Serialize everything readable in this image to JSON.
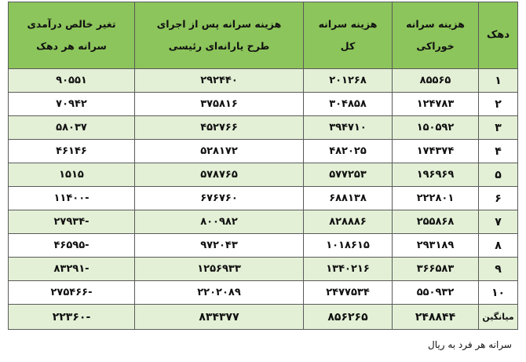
{
  "table": {
    "headers": {
      "dahak": "دهک",
      "food_per_capita": [
        "هزینه سرانه",
        "خوراکی"
      ],
      "total_per_capita": [
        "هزینه سرانه",
        "کل"
      ],
      "after_subsidy": [
        "هزینه سرانه پس از اجرای",
        "طرح یارانه‌ای رئیسی"
      ],
      "net_income_change": [
        "تغیر خالص درآمدی",
        "سرانه هر دهک"
      ]
    },
    "rows": [
      {
        "dahak": "۱",
        "food": "۸۵۵۶۵",
        "total": "۲۰۱۲۶۸",
        "after": "۲۹۲۴۴۰",
        "change": "۹۰۵۵۱"
      },
      {
        "dahak": "۲",
        "food": "۱۲۴۷۸۳",
        "total": "۳۰۴۸۵۸",
        "after": "۳۷۵۸۱۶",
        "change": "۷۰۹۴۲"
      },
      {
        "dahak": "۳",
        "food": "۱۵۰۵۹۲",
        "total": "۳۹۴۷۱۰",
        "after": "۴۵۲۷۶۶",
        "change": "۵۸۰۳۷"
      },
      {
        "dahak": "۴",
        "food": "۱۷۴۳۷۴",
        "total": "۴۸۲۰۲۵",
        "after": "۵۲۸۱۷۲",
        "change": "۴۶۱۴۶"
      },
      {
        "dahak": "۵",
        "food": "۱۹۶۹۶۹",
        "total": "۵۷۷۲۵۳",
        "after": "۵۷۸۷۶۵",
        "change": "۱۵۱۵"
      },
      {
        "dahak": "۶",
        "food": "۲۲۲۸۰۱",
        "total": "۶۸۸۱۳۸",
        "after": "۶۷۶۷۶۰",
        "change": "-۱۱۴۰۰"
      },
      {
        "dahak": "۷",
        "food": "۲۵۵۸۶۸",
        "total": "۸۲۸۸۸۶",
        "after": "۸۰۰۹۸۲",
        "change": "-۲۷۹۳۴"
      },
      {
        "dahak": "۸",
        "food": "۲۹۳۱۸۹",
        "total": "۱۰۱۸۶۱۵",
        "after": "۹۷۲۰۴۳",
        "change": "-۴۶۵۹۵"
      },
      {
        "dahak": "۹",
        "food": "۳۶۶۵۸۳",
        "total": "۱۳۴۰۲۱۶",
        "after": "۱۲۵۶۹۳۳",
        "change": "-۸۳۲۹۱"
      },
      {
        "dahak": "۱۰",
        "food": "۵۵۰۹۳۲",
        "total": "۲۴۷۷۵۳۴",
        "after": "۲۲۰۲۰۸۹",
        "change": "-۲۷۵۴۶۶"
      }
    ],
    "average": {
      "label": "میانگین",
      "food": "۲۴۸۸۴۴",
      "total": "۸۵۶۲۶۵",
      "after": "۸۳۴۳۷۷",
      "change": "-۲۲۳۶۰"
    }
  },
  "footnote": "سرانه هر فرد به ریال"
}
